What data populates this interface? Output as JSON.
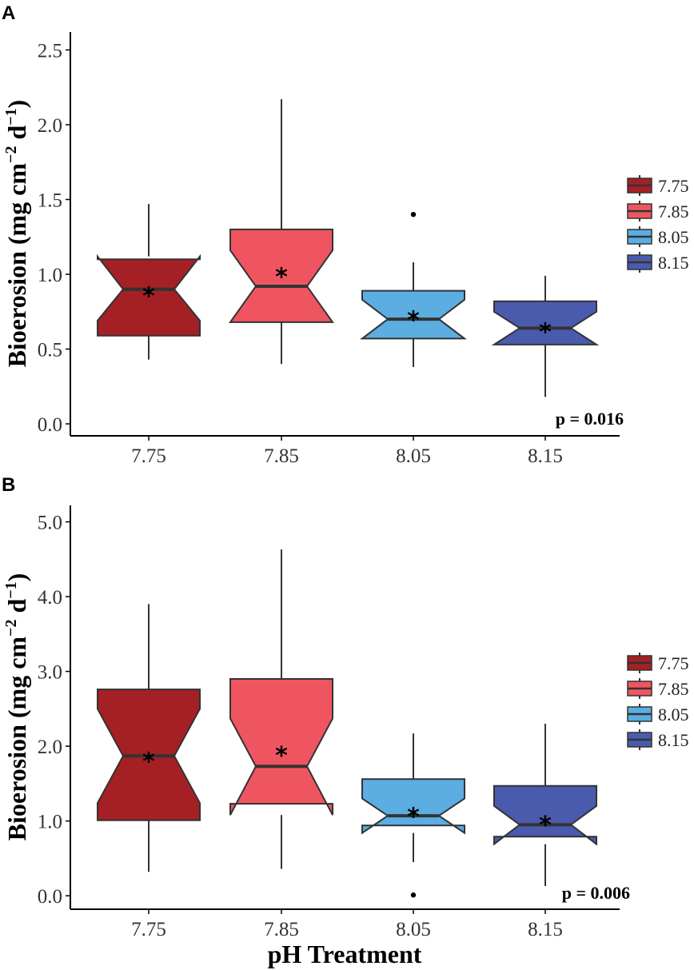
{
  "chart_data": [
    {
      "panel": "A",
      "type": "boxplot",
      "notched": true,
      "xlabel": "",
      "ylabel": "Bioerosion (mg cm⁻² d⁻¹)",
      "ylabel_main": "Bioerosion (mg cm",
      "ylabel_sup1": "−2",
      "ylabel_mid": " d",
      "ylabel_sup2": "−1",
      "ylabel_end": ")",
      "ylim": [
        -0.08,
        2.62
      ],
      "yticks": [
        0.0,
        0.5,
        1.0,
        1.5,
        2.0,
        2.5
      ],
      "ytick_labels": [
        "0.0",
        "0.5",
        "1.0",
        "1.5",
        "2.0",
        "2.5"
      ],
      "categories": [
        "7.75",
        "7.85",
        "8.05",
        "8.15"
      ],
      "p_value_label": "p = 0.016",
      "legend": [
        "7.75",
        "7.85",
        "8.05",
        "8.15"
      ],
      "boxes": [
        {
          "category": "7.75",
          "color": "#A52024",
          "whisker_low": 0.43,
          "q1": 0.59,
          "median": 0.9,
          "q3": 1.1,
          "whisker_high": 1.47,
          "notch_low": 0.69,
          "notch_high": 1.12,
          "mean": 0.9,
          "outliers": []
        },
        {
          "category": "7.85",
          "color": "#EF5560",
          "whisker_low": 0.4,
          "q1": 0.68,
          "median": 0.92,
          "q3": 1.3,
          "whisker_high": 2.17,
          "notch_low": 0.68,
          "notch_high": 1.16,
          "mean": 1.03,
          "outliers": []
        },
        {
          "category": "8.05",
          "color": "#5BADE2",
          "whisker_low": 0.38,
          "q1": 0.57,
          "median": 0.7,
          "q3": 0.89,
          "whisker_high": 1.08,
          "notch_low": 0.57,
          "notch_high": 0.83,
          "mean": 0.74,
          "outliers": [
            1.4
          ]
        },
        {
          "category": "8.15",
          "color": "#4A5BAE",
          "whisker_low": 0.18,
          "q1": 0.53,
          "median": 0.64,
          "q3": 0.82,
          "whisker_high": 0.99,
          "notch_low": 0.53,
          "notch_high": 0.75,
          "mean": 0.66,
          "outliers": []
        }
      ]
    },
    {
      "panel": "B",
      "type": "boxplot",
      "notched": true,
      "xlabel": "pH Treatment",
      "ylabel": "Bioerosion (mg cm⁻² d⁻¹)",
      "ylabel_main": "Bioerosion (mg cm",
      "ylabel_sup1": "−2",
      "ylabel_mid": " d",
      "ylabel_sup2": "−1",
      "ylabel_end": ")",
      "ylim": [
        -0.18,
        5.22
      ],
      "yticks": [
        0.0,
        1.0,
        2.0,
        3.0,
        4.0,
        5.0
      ],
      "ytick_labels": [
        "0.0",
        "1.0",
        "2.0",
        "3.0",
        "4.0",
        "5.0"
      ],
      "categories": [
        "7.75",
        "7.85",
        "8.05",
        "8.15"
      ],
      "p_value_label": "p = 0.006",
      "legend": [
        "7.75",
        "7.85",
        "8.05",
        "8.15"
      ],
      "boxes": [
        {
          "category": "7.75",
          "color": "#A52024",
          "whisker_low": 0.32,
          "q1": 1.01,
          "median": 1.87,
          "q3": 2.76,
          "whisker_high": 3.9,
          "notch_low": 1.24,
          "notch_high": 2.5,
          "mean": 1.89,
          "outliers": []
        },
        {
          "category": "7.85",
          "color": "#EF5560",
          "whisker_low": 0.36,
          "q1": 1.23,
          "median": 1.73,
          "q3": 2.9,
          "whisker_high": 4.63,
          "notch_low": 1.08,
          "notch_high": 2.37,
          "mean": 1.97,
          "outliers": []
        },
        {
          "category": "8.05",
          "color": "#5BADE2",
          "whisker_low": 0.45,
          "q1": 0.94,
          "median": 1.07,
          "q3": 1.56,
          "whisker_high": 2.17,
          "notch_low": 0.84,
          "notch_high": 1.3,
          "mean": 1.15,
          "outliers": [
            0.01
          ]
        },
        {
          "category": "8.15",
          "color": "#4A5BAE",
          "whisker_low": 0.13,
          "q1": 0.79,
          "median": 0.95,
          "q3": 1.47,
          "whisker_high": 2.3,
          "notch_low": 0.69,
          "notch_high": 1.2,
          "mean": 1.04,
          "outliers": []
        }
      ]
    }
  ],
  "colors": {
    "7.75": "#A52024",
    "7.85": "#EF5560",
    "8.05": "#5BADE2",
    "8.15": "#4A5BAE"
  }
}
